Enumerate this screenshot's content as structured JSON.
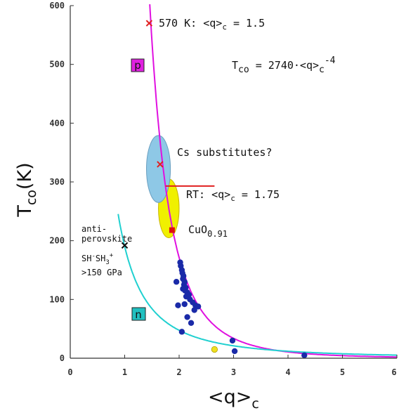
{
  "chart_data": {
    "type": "scatter",
    "xlabel_main": "<q>",
    "xlabel_sub": "c",
    "ylabel_main": "T",
    "ylabel_sub": "co",
    "ylabel_tail": "(K)",
    "xlim": [
      0,
      6
    ],
    "ylim": [
      0,
      600
    ],
    "x_ticks": [
      0,
      1,
      2,
      3,
      4,
      5,
      6
    ],
    "x_tick_labels": [
      "0",
      "1",
      "2",
      "3",
      "4",
      "5",
      "6"
    ],
    "y_ticks": [
      0,
      100,
      200,
      300,
      400,
      500,
      600
    ],
    "y_tick_labels": [
      "0",
      "100",
      "200",
      "300",
      "400",
      "500",
      "600"
    ],
    "grid": false,
    "series": [
      {
        "kind": "curve",
        "color": "#e010e0",
        "coefficient": 2740,
        "exponent": -4,
        "x_range": [
          1.43,
          6.0
        ]
      },
      {
        "kind": "curve",
        "color": "#20d0d0",
        "coefficient": 190,
        "exponent": -2,
        "x_range": [
          0.88,
          6.0
        ]
      },
      {
        "kind": "points",
        "color": "#1a2aa8",
        "x": [
          2.02,
          2.03,
          2.05,
          2.06,
          2.08,
          2.07,
          2.1,
          2.09,
          2.12,
          2.11,
          2.15,
          2.13,
          2.18,
          2.2,
          2.25,
          2.3,
          2.35,
          2.28,
          2.1,
          1.98,
          2.15,
          2.22,
          2.05,
          2.98,
          3.02,
          4.3,
          1.95,
          2.07
        ],
        "y": [
          163,
          157,
          150,
          145,
          140,
          135,
          130,
          125,
          120,
          115,
          112,
          105,
          108,
          100,
          95,
          90,
          88,
          82,
          92,
          90,
          70,
          60,
          45,
          30,
          12,
          5,
          130,
          118
        ]
      },
      {
        "kind": "points",
        "color": "#f0e020",
        "x": [
          2.65
        ],
        "y": [
          15
        ]
      }
    ],
    "markers": [
      {
        "kind": "cross",
        "color": "#e02020",
        "x": 1.45,
        "y": 570
      },
      {
        "kind": "cross",
        "color": "#e02020",
        "x": 1.65,
        "y": 330
      },
      {
        "kind": "square",
        "color": "#e01010",
        "x": 1.87,
        "y": 218
      },
      {
        "kind": "cross",
        "color": "#111111",
        "x": 1.0,
        "y": 192
      }
    ],
    "regions": [
      {
        "color": "#f0f000",
        "stroke": "#c8b400",
        "cx": 1.81,
        "cy": 255,
        "rx": 0.19,
        "ry": 50
      },
      {
        "color": "#8ec8e6",
        "stroke": "#6a9fc0",
        "cx": 1.62,
        "cy": 322,
        "rx": 0.22,
        "ry": 57
      }
    ],
    "rt_line": {
      "color": "#e02020",
      "x": [
        1.75,
        2.65
      ],
      "y": 293
    },
    "annotations": {
      "a570": "570 K: <q>",
      "a570_sub": "c",
      "a570_tail": " = 1.5",
      "formula": "T",
      "formula_sub": "co",
      "formula_mid": " = 2740·<q>",
      "formula_sub2": "c",
      "formula_sup": "-4",
      "cs": "Cs substitutes?",
      "rt": "RT: <q>",
      "rt_sub": "c",
      "rt_tail": " = 1.75",
      "cuo": "CuO",
      "cuo_sub": "0.91",
      "anti1": "anti-",
      "anti2": "perovskite",
      "sh_a": "SH",
      "sh_sup1": "-",
      "sh_b": "SH",
      "sh_sub": "3",
      "sh_sup2": "+",
      "gpa": ">150 GPa",
      "label_p": "p",
      "label_n": "n"
    }
  },
  "colors": {
    "p_box": "#e020e0",
    "n_box": "#20c0c0"
  }
}
